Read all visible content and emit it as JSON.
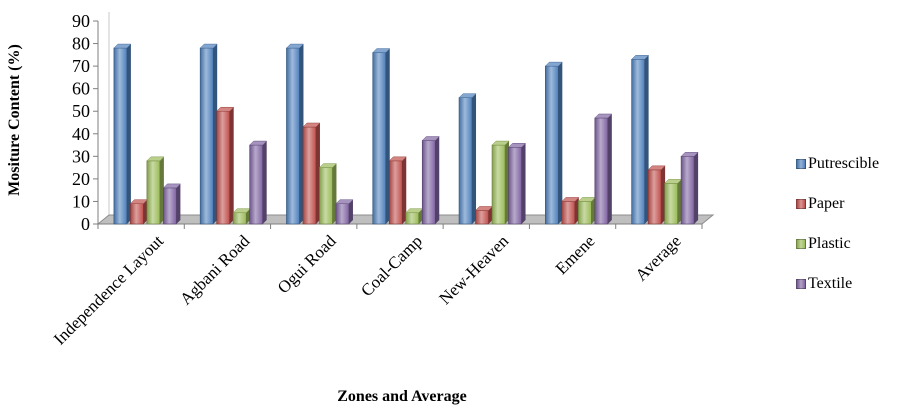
{
  "chart_data": {
    "type": "bar",
    "xlabel": "Zones and Average",
    "ylabel": "Mositure Content (%)",
    "ylim": [
      0,
      90
    ],
    "yticks": [
      0,
      10,
      20,
      30,
      40,
      50,
      60,
      70,
      80,
      90
    ],
    "categories": [
      "Independence Layout",
      "Agbani Road",
      "Ogui Road",
      "Coal-Camp",
      "New-Heaven",
      "Emene",
      "Average"
    ],
    "series": [
      {
        "name": "Putrescible",
        "color": "#4F81BD",
        "values": [
          78,
          78,
          78,
          76,
          56,
          70,
          73
        ]
      },
      {
        "name": "Paper",
        "color": "#C0504D",
        "values": [
          9,
          50,
          43,
          28,
          6,
          10,
          24
        ]
      },
      {
        "name": "Plastic",
        "color": "#9BBB59",
        "values": [
          28,
          5,
          25,
          5,
          35,
          10,
          18
        ]
      },
      {
        "name": "Textile",
        "color": "#8064A2",
        "values": [
          16,
          35,
          9,
          37,
          34,
          47,
          30
        ]
      }
    ],
    "legend_position": "right",
    "grid": false
  }
}
